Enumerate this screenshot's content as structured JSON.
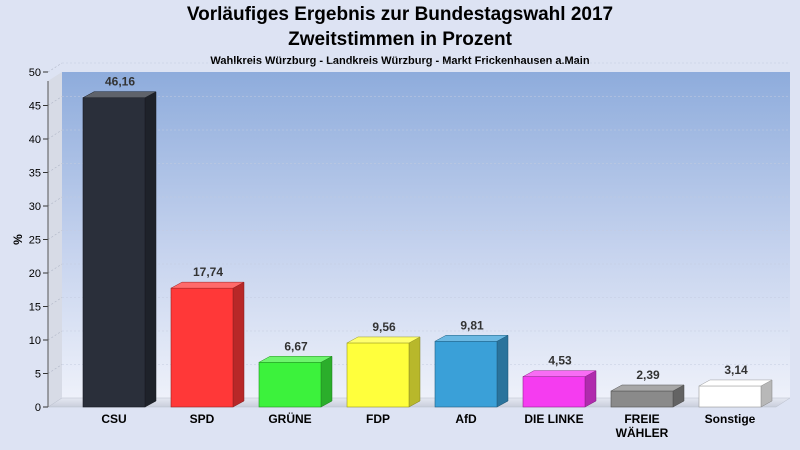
{
  "chart_data": {
    "type": "bar",
    "title": "Vorläufiges Ergebnis zur Bundestagswahl 2017",
    "subtitle": "Zweitstimmen in Prozent",
    "caption": "Wahlkreis Würzburg - Landkreis Würzburg - Markt Frickenhausen a.Main",
    "ylabel": "%",
    "ylim": [
      0,
      50
    ],
    "yticks": [
      0,
      5,
      10,
      15,
      20,
      25,
      30,
      35,
      40,
      45,
      50
    ],
    "grid": true,
    "categories": [
      {
        "lines": [
          "CSU"
        ]
      },
      {
        "lines": [
          "SPD"
        ]
      },
      {
        "lines": [
          "GRÜNE"
        ]
      },
      {
        "lines": [
          "FDP"
        ]
      },
      {
        "lines": [
          "AfD"
        ]
      },
      {
        "lines": [
          "DIE LINKE"
        ]
      },
      {
        "lines": [
          "FREIE",
          "WÄHLER"
        ]
      },
      {
        "lines": [
          "Sonstige"
        ]
      }
    ],
    "values": [
      46.16,
      17.74,
      6.67,
      9.56,
      9.81,
      4.53,
      2.39,
      3.14
    ],
    "value_labels": [
      "46,16",
      "17,74",
      "6,67",
      "9,56",
      "9,81",
      "4,53",
      "2,39",
      "3,14"
    ],
    "colors": [
      "#2a2f3a",
      "#ff3838",
      "#3cf23c",
      "#ffff3c",
      "#3aa0d8",
      "#f53cf0",
      "#8a8a8a",
      "#ffffff"
    ]
  }
}
